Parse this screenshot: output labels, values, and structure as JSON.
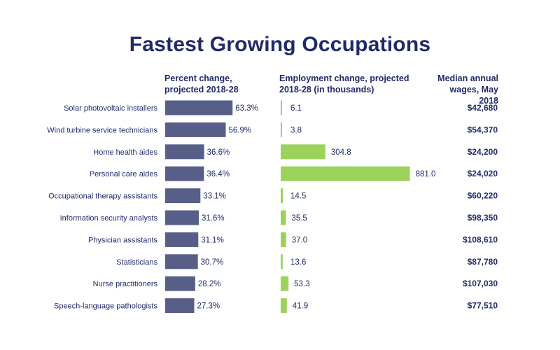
{
  "chart_data": {
    "type": "bar",
    "title": "Fastest Growing Occupations",
    "categories": [
      "Solar photovoltaic installers",
      "Wind turbine service technicians",
      "Home health aides",
      "Personal care aides",
      "Occupational therapy assistants",
      "Information security analysts",
      "Physician assistants",
      "Statisticians",
      "Nurse practitioners",
      "Speech-language pathologists"
    ],
    "series": [
      {
        "name": "Percent change, projected 2018-28",
        "values": [
          63.3,
          56.9,
          36.6,
          36.4,
          33.1,
          31.6,
          31.1,
          30.7,
          28.2,
          27.3
        ],
        "labels": [
          "63.3%",
          "56.9%",
          "36.6%",
          "36.4%",
          "33.1%",
          "31.6%",
          "31.1%",
          "30.7%",
          "28.2%",
          "27.3%"
        ],
        "color": "#575e87"
      },
      {
        "name": "Employment change, projected 2018-28 (in thousands)",
        "values": [
          6.1,
          3.8,
          304.8,
          881.0,
          14.5,
          35.5,
          37.0,
          13.6,
          53.3,
          41.9
        ],
        "labels": [
          "6.1",
          "3.8",
          "304.8",
          "881.0",
          "14.5",
          "35.5",
          "37.0",
          "13.6",
          "53.3",
          "41.9"
        ],
        "color": "#9bd35a"
      },
      {
        "name": "Median annual wages, May 2018",
        "values": [
          42680,
          54370,
          24200,
          24020,
          60220,
          98350,
          108610,
          87780,
          107030,
          77510
        ],
        "labels": [
          "$42,680",
          "$54,370",
          "$24,200",
          "$24,020",
          "$60,220",
          "$98,350",
          "$108,610",
          "$87,780",
          "$107,030",
          "$77,510"
        ]
      }
    ],
    "headers": {
      "pct": "Percent change, projected 2018-28",
      "emp": "Employment change, projected 2018-28 (in thousands)",
      "wage": "Median annual wages, May 2018"
    },
    "text_color": "#1f2a6b"
  }
}
